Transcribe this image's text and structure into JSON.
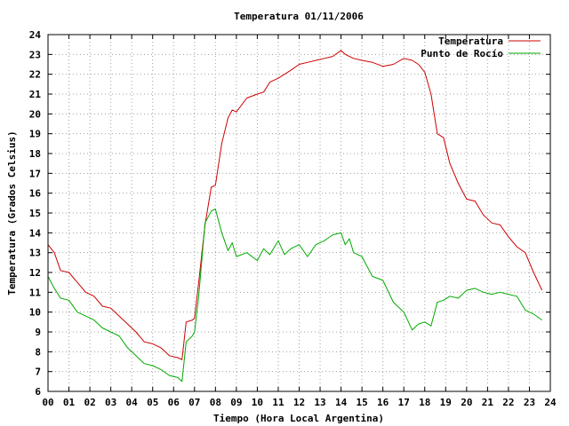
{
  "chart_data": {
    "type": "line",
    "title": "Temperatura 01/11/2006",
    "xlabel": "Tiempo (Hora Local Argentina)",
    "ylabel": "Temperatura (Grados Celsius)",
    "xlim": [
      0,
      24
    ],
    "ylim": [
      6,
      24
    ],
    "x_ticks": [
      "00",
      "01",
      "02",
      "03",
      "04",
      "05",
      "06",
      "07",
      "08",
      "09",
      "10",
      "11",
      "12",
      "13",
      "14",
      "15",
      "16",
      "17",
      "18",
      "19",
      "20",
      "21",
      "22",
      "23",
      "24"
    ],
    "y_ticks": [
      "6",
      "7",
      "8",
      "9",
      "10",
      "11",
      "12",
      "13",
      "14",
      "15",
      "16",
      "17",
      "18",
      "19",
      "20",
      "21",
      "22",
      "23",
      "24"
    ],
    "grid": true,
    "legend_position": "top-right",
    "series": [
      {
        "name": "Temperatura",
        "color": "#cc0000",
        "x": [
          0.0,
          0.3,
          0.6,
          1.0,
          1.4,
          1.8,
          2.2,
          2.6,
          3.0,
          3.4,
          3.8,
          4.2,
          4.6,
          5.0,
          5.4,
          5.8,
          6.2,
          6.4,
          6.6,
          6.9,
          7.0,
          7.2,
          7.5,
          7.8,
          8.0,
          8.3,
          8.6,
          8.8,
          9.0,
          9.5,
          10.0,
          10.3,
          10.6,
          11.0,
          11.3,
          11.6,
          12.0,
          12.4,
          12.8,
          13.2,
          13.6,
          14.0,
          14.2,
          14.4,
          14.6,
          15.0,
          15.5,
          16.0,
          16.5,
          17.0,
          17.4,
          17.7,
          18.0,
          18.3,
          18.6,
          18.9,
          19.2,
          19.6,
          20.0,
          20.4,
          20.8,
          21.2,
          21.6,
          22.0,
          22.4,
          22.8,
          23.2,
          23.6
        ],
        "y": [
          13.4,
          13.0,
          12.1,
          12.0,
          11.5,
          11.0,
          10.8,
          10.3,
          10.2,
          9.8,
          9.4,
          9.0,
          8.5,
          8.4,
          8.2,
          7.8,
          7.7,
          7.6,
          9.5,
          9.6,
          9.7,
          11.5,
          14.4,
          16.3,
          16.4,
          18.5,
          19.8,
          20.2,
          20.1,
          20.8,
          21.0,
          21.1,
          21.6,
          21.8,
          22.0,
          22.2,
          22.5,
          22.6,
          22.7,
          22.8,
          22.9,
          23.2,
          23.0,
          22.9,
          22.8,
          22.7,
          22.6,
          22.4,
          22.5,
          22.8,
          22.7,
          22.5,
          22.1,
          21.0,
          19.0,
          18.8,
          17.5,
          16.5,
          15.7,
          15.6,
          14.9,
          14.5,
          14.4,
          13.8,
          13.3,
          13.0,
          12.0,
          11.1
        ]
      },
      {
        "name": "Punto de Rocío",
        "color": "#00aa00",
        "x": [
          0.0,
          0.3,
          0.6,
          1.0,
          1.4,
          1.8,
          2.2,
          2.6,
          3.0,
          3.4,
          3.8,
          4.2,
          4.6,
          5.0,
          5.4,
          5.8,
          6.2,
          6.4,
          6.6,
          6.9,
          7.0,
          7.2,
          7.5,
          7.8,
          8.0,
          8.3,
          8.6,
          8.8,
          9.0,
          9.5,
          10.0,
          10.3,
          10.6,
          11.0,
          11.3,
          11.6,
          12.0,
          12.4,
          12.8,
          13.2,
          13.6,
          14.0,
          14.2,
          14.4,
          14.6,
          15.0,
          15.5,
          16.0,
          16.5,
          17.0,
          17.4,
          17.7,
          18.0,
          18.3,
          18.6,
          18.9,
          19.2,
          19.6,
          20.0,
          20.4,
          20.8,
          21.2,
          21.6,
          22.0,
          22.4,
          22.8,
          23.2,
          23.6
        ],
        "y": [
          11.8,
          11.2,
          10.7,
          10.6,
          10.0,
          9.8,
          9.6,
          9.2,
          9.0,
          8.8,
          8.2,
          7.8,
          7.4,
          7.3,
          7.1,
          6.8,
          6.7,
          6.5,
          8.5,
          8.8,
          9.0,
          10.8,
          14.5,
          15.1,
          15.2,
          14.0,
          13.1,
          13.5,
          12.8,
          13.0,
          12.6,
          13.2,
          12.9,
          13.6,
          12.9,
          13.2,
          13.4,
          12.8,
          13.4,
          13.6,
          13.9,
          14.0,
          13.4,
          13.7,
          13.0,
          12.8,
          11.8,
          11.6,
          10.5,
          10.0,
          9.1,
          9.4,
          9.5,
          9.3,
          10.5,
          10.6,
          10.8,
          10.7,
          11.1,
          11.2,
          11.0,
          10.9,
          11.0,
          10.9,
          10.8,
          10.1,
          9.9,
          9.6
        ]
      }
    ]
  }
}
